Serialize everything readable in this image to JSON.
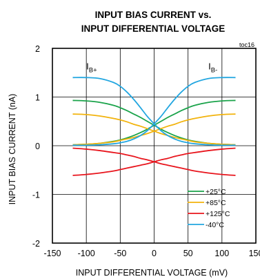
{
  "chart_data": {
    "type": "line",
    "title_line1": "INPUT BIAS CURRENT vs.",
    "title_line2": "INPUT DIFFERENTIAL VOLTAGE",
    "figure_id": "toc16",
    "xlabel": "INPUT DIFFERENTIAL VOLTAGE (mV)",
    "ylabel": "INPUT BIAS CURRENT (nA)",
    "xlim": [
      -150,
      150
    ],
    "ylim": [
      -2,
      2
    ],
    "xticks": [
      -150,
      -100,
      -50,
      0,
      50,
      100,
      150
    ],
    "xtick_labels": [
      "-150",
      "-100",
      "-50",
      "0",
      "50",
      "100",
      "150"
    ],
    "yticks": [
      -2,
      -1,
      0,
      1,
      2
    ],
    "ytick_labels": [
      "-2",
      "-1",
      "0",
      "1",
      "2"
    ],
    "grid": true,
    "legend_position": "lower-right",
    "annotations": [
      {
        "main": "I",
        "sub": "B+",
        "x": -100,
        "y": 1.57
      },
      {
        "main": "I",
        "sub": "B-",
        "x": 80,
        "y": 1.57
      }
    ],
    "x": [
      -120,
      -100,
      -80,
      -60,
      -50,
      -40,
      -30,
      -20,
      -10,
      0,
      10,
      20,
      30,
      40,
      50,
      60,
      80,
      100,
      120
    ],
    "series": [
      {
        "name": "+25°C",
        "color": "#1aa34a",
        "curve": "IB+",
        "values": [
          0.93,
          0.92,
          0.89,
          0.83,
          0.78,
          0.72,
          0.65,
          0.58,
          0.5,
          0.42,
          0.34,
          0.27,
          0.21,
          0.16,
          0.12,
          0.09,
          0.05,
          0.03,
          0.02
        ]
      },
      {
        "name": "+25°C",
        "color": "#1aa34a",
        "curve": "IB-",
        "values": [
          0.02,
          0.03,
          0.05,
          0.09,
          0.12,
          0.16,
          0.21,
          0.27,
          0.34,
          0.42,
          0.5,
          0.58,
          0.65,
          0.72,
          0.78,
          0.83,
          0.89,
          0.92,
          0.93
        ]
      },
      {
        "name": "+85°C",
        "color": "#f2b30c",
        "curve": "IB+",
        "values": [
          0.65,
          0.64,
          0.61,
          0.56,
          0.53,
          0.49,
          0.44,
          0.4,
          0.35,
          0.3,
          0.25,
          0.21,
          0.17,
          0.14,
          0.11,
          0.08,
          0.05,
          0.03,
          0.02
        ]
      },
      {
        "name": "+85°C",
        "color": "#f2b30c",
        "curve": "IB-",
        "values": [
          0.02,
          0.03,
          0.05,
          0.08,
          0.11,
          0.14,
          0.17,
          0.21,
          0.25,
          0.3,
          0.35,
          0.4,
          0.44,
          0.49,
          0.53,
          0.56,
          0.61,
          0.64,
          0.65
        ]
      },
      {
        "name": "+125°C",
        "color": "#e8141c",
        "curve": "IB+",
        "values": [
          -0.05,
          -0.07,
          -0.1,
          -0.14,
          -0.16,
          -0.19,
          -0.22,
          -0.26,
          -0.29,
          -0.33,
          -0.37,
          -0.4,
          -0.43,
          -0.46,
          -0.49,
          -0.52,
          -0.56,
          -0.59,
          -0.61
        ]
      },
      {
        "name": "+125°C",
        "color": "#e8141c",
        "curve": "IB-",
        "values": [
          -0.61,
          -0.59,
          -0.56,
          -0.52,
          -0.49,
          -0.46,
          -0.43,
          -0.4,
          -0.37,
          -0.33,
          -0.29,
          -0.26,
          -0.22,
          -0.19,
          -0.16,
          -0.14,
          -0.1,
          -0.07,
          -0.05
        ]
      },
      {
        "name": "-40°C",
        "color": "#22a6e0",
        "curve": "IB+",
        "values": [
          1.4,
          1.4,
          1.38,
          1.3,
          1.22,
          1.1,
          0.95,
          0.78,
          0.6,
          0.45,
          0.31,
          0.21,
          0.14,
          0.09,
          0.06,
          0.04,
          0.02,
          0.01,
          0.01
        ]
      },
      {
        "name": "-40°C",
        "color": "#22a6e0",
        "curve": "IB-",
        "values": [
          0.01,
          0.01,
          0.02,
          0.04,
          0.06,
          0.09,
          0.14,
          0.21,
          0.31,
          0.45,
          0.6,
          0.78,
          0.95,
          1.1,
          1.22,
          1.3,
          1.38,
          1.4,
          1.4
        ]
      }
    ],
    "legend": [
      {
        "label": "+25°C",
        "color": "#1aa34a"
      },
      {
        "label": "+85°C",
        "color": "#f2b30c"
      },
      {
        "label": "+125°C",
        "color": "#e8141c"
      },
      {
        "label": "-40°C",
        "color": "#22a6e0"
      }
    ]
  }
}
